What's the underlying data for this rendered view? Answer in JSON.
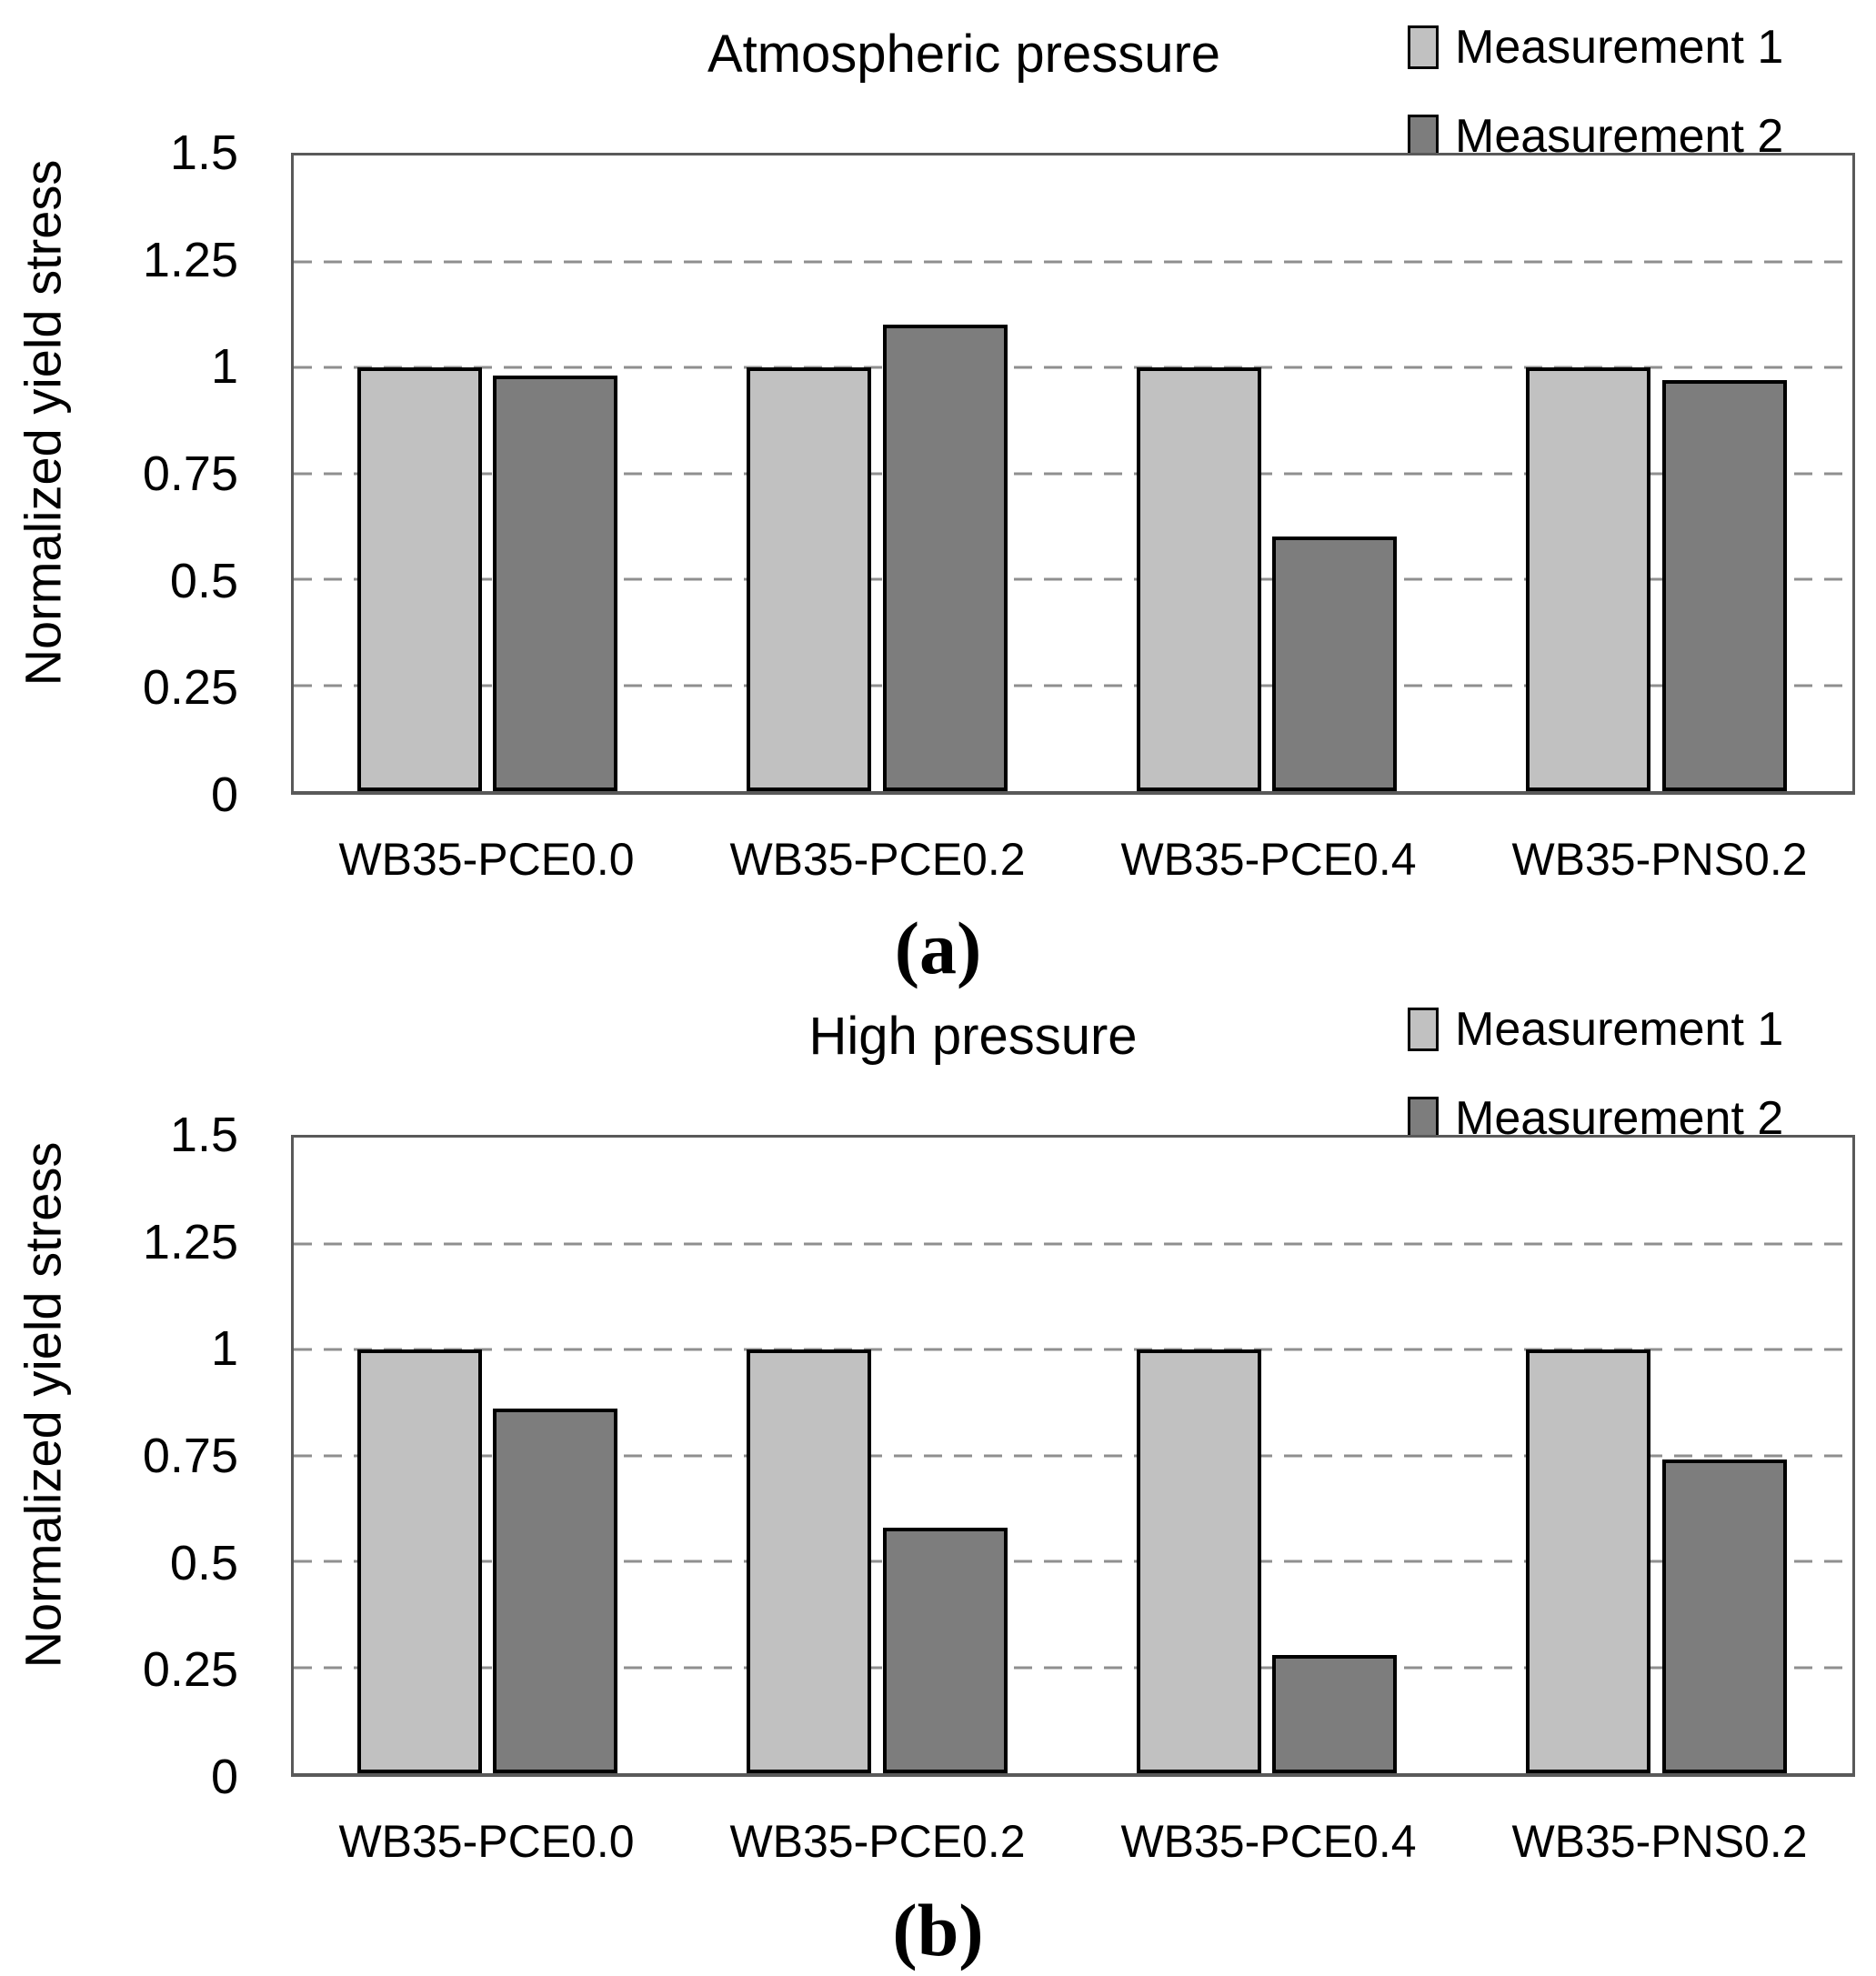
{
  "figure": {
    "background": "#ffffff",
    "text_color": "#000000",
    "plot_border_color": "#595959",
    "gridline_color": "#8f8f8f",
    "bar_border_color": "#000000"
  },
  "chart_data": [
    {
      "type": "bar",
      "title": "Atmospheric pressure",
      "caption": "(a)",
      "xlabel": "",
      "ylabel": "Normalized yield stress",
      "ylim": [
        0,
        1.5
      ],
      "yticks": [
        1.5,
        1.25,
        1,
        0.75,
        0.5,
        0.25,
        0
      ],
      "ytick_labels": [
        "1.5",
        "1.25",
        "1",
        "0.75",
        "0.5",
        "0.25",
        "0"
      ],
      "gridlines": [
        1.25,
        1,
        0.75,
        0.5,
        0.25
      ],
      "grid": "horizontal dashed",
      "legend_position": "top-right",
      "categories": [
        "WB35-PCE0.0",
        "WB35-PCE0.2",
        "WB35-PCE0.4",
        "WB35-PNS0.2"
      ],
      "series": [
        {
          "name": "Measurement 1",
          "color": "#c1c1c1",
          "values": [
            1.0,
            1.0,
            1.0,
            1.0
          ]
        },
        {
          "name": "Measurement 2",
          "color": "#7d7d7d",
          "values": [
            0.98,
            1.1,
            0.6,
            0.97
          ]
        }
      ]
    },
    {
      "type": "bar",
      "title": "High pressure",
      "caption": "(b)",
      "xlabel": "",
      "ylabel": "Normalized yield stress",
      "ylim": [
        0,
        1.5
      ],
      "yticks": [
        1.5,
        1.25,
        1,
        0.75,
        0.5,
        0.25,
        0
      ],
      "ytick_labels": [
        "1.5",
        "1.25",
        "1",
        "0.75",
        "0.5",
        "0.25",
        "0"
      ],
      "gridlines": [
        1.25,
        1,
        0.75,
        0.5,
        0.25
      ],
      "grid": "horizontal dashed",
      "legend_position": "top-right",
      "categories": [
        "WB35-PCE0.0",
        "WB35-PCE0.2",
        "WB35-PCE0.4",
        "WB35-PNS0.2"
      ],
      "series": [
        {
          "name": "Measurement 1",
          "color": "#c1c1c1",
          "values": [
            1.0,
            1.0,
            1.0,
            1.0
          ]
        },
        {
          "name": "Measurement 2",
          "color": "#7d7d7d",
          "values": [
            0.86,
            0.58,
            0.28,
            0.74
          ]
        }
      ]
    }
  ]
}
